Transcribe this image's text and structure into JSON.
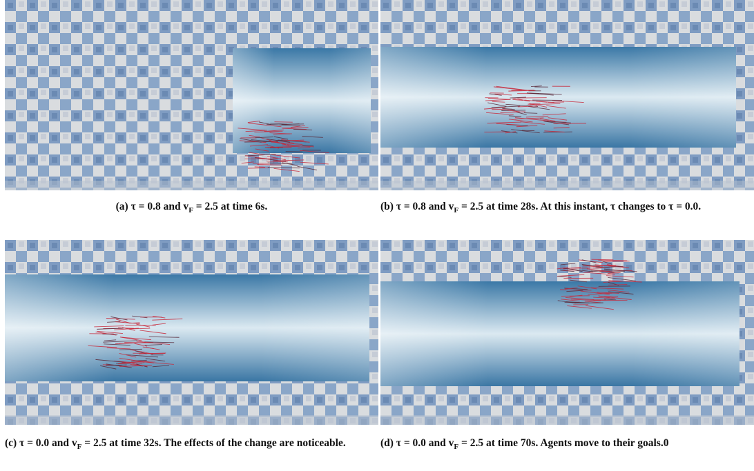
{
  "figure": {
    "subfigures": [
      {
        "label": "(a)",
        "parts": [
          "τ = 0.8 and v",
          "F",
          " = 2.5 at time 6s."
        ]
      },
      {
        "label": "(b)",
        "parts": [
          "τ = 0.8 and v",
          "F",
          " = 2.5 at time 28s. At this instant, τ changes to τ = 0.0."
        ]
      },
      {
        "label": "(c)",
        "parts": [
          "τ = 0.0 and v",
          "F",
          " = 2.5 at time 32s. The effects of the change are noticeable."
        ]
      },
      {
        "label": "(d)",
        "parts": [
          "τ = 0.0 and v",
          "F",
          " = 2.5 at time 70s. Agents move to their goals.0"
        ]
      }
    ]
  }
}
